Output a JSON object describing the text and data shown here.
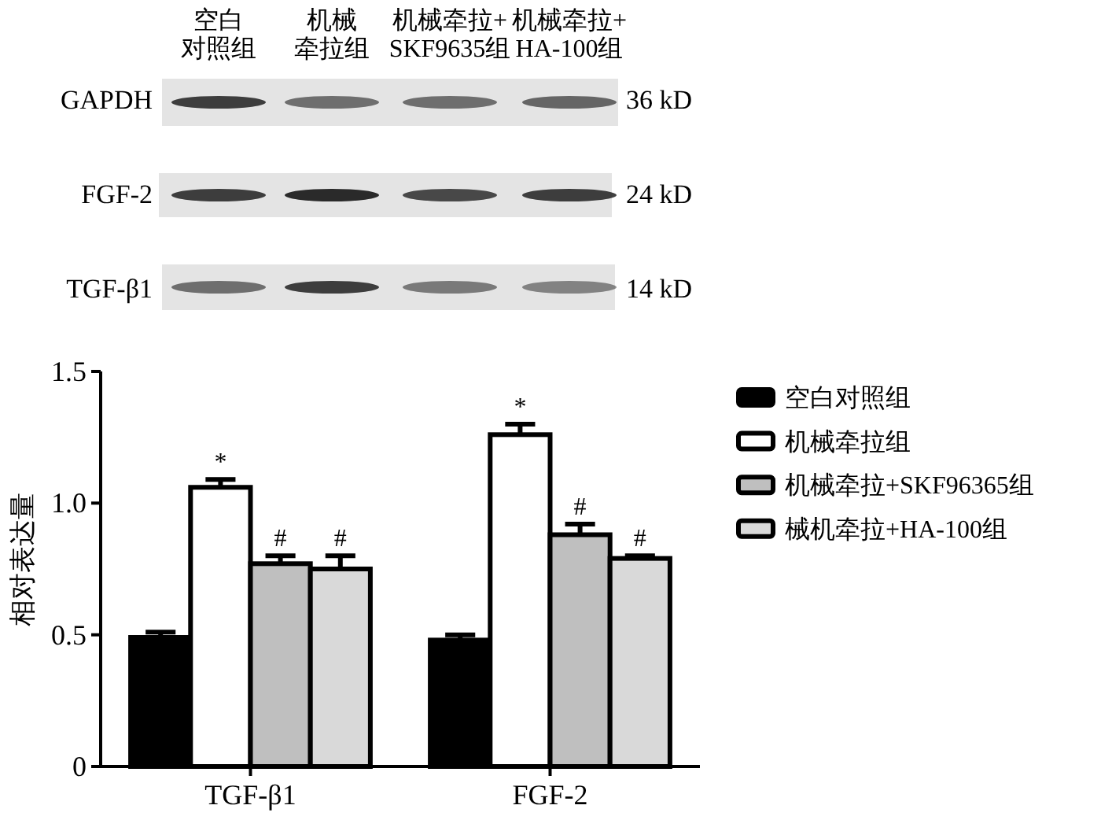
{
  "chart_data": {
    "type": "bar",
    "categories": [
      "TGF-β1",
      "FGF-2"
    ],
    "series": [
      {
        "name": "空白对照组",
        "color": "#000000",
        "values": [
          0.49,
          0.48
        ],
        "errors": [
          0.02,
          0.02
        ]
      },
      {
        "name": "机械牵拉组",
        "color": "#ffffff",
        "values": [
          1.06,
          1.26
        ],
        "errors": [
          0.03,
          0.04
        ],
        "value_labels": [
          "*",
          "*"
        ]
      },
      {
        "name": "机械牵拉+SKF96365组",
        "color": "#bfbfbf",
        "values": [
          0.77,
          0.88
        ],
        "errors": [
          0.03,
          0.04
        ],
        "value_labels": [
          "#",
          "#"
        ]
      },
      {
        "name": "械机牵拉+HA-100组",
        "color": "#d9d9d9",
        "values": [
          0.75,
          0.79
        ],
        "errors": [
          0.05,
          0.01
        ],
        "value_labels": [
          "#",
          "#"
        ]
      }
    ],
    "ylabel": "相对表达量",
    "ylim": [
      0,
      1.5
    ],
    "yticks": [
      0,
      0.5,
      {
        "value": 1,
        "label": "1.0"
      },
      1.5
    ],
    "legend": "right",
    "annotations": [
      "空白",
      "对照组",
      "机械",
      "牵拉组",
      "机械牵拉+",
      "SKF9635组",
      "机械牵拉+",
      "HA-100组",
      "GAPDH",
      "FGF-2",
      "TGF-β1",
      "36 kD",
      "24 kD",
      "14 kD"
    ]
  }
}
